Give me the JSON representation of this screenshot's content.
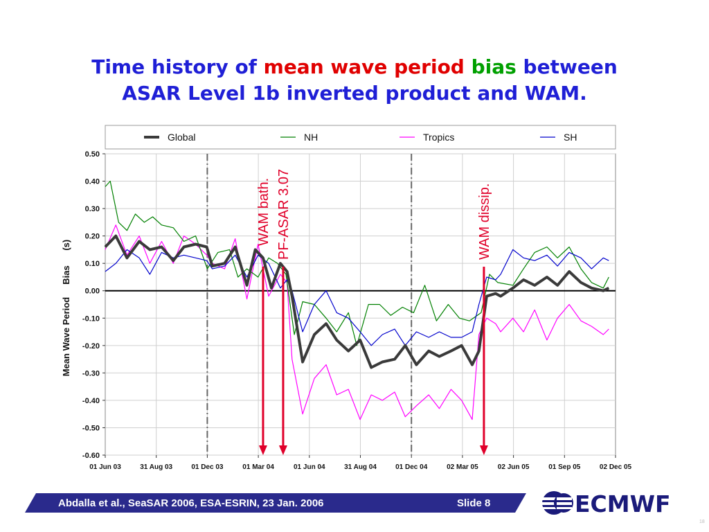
{
  "title": {
    "line1_a": "Time history of ",
    "line1_b": "mean wave period",
    "line1_c": " ",
    "line1_d": "bias",
    "line1_e": " between",
    "line2": "ASAR Level 1b inverted product and WAM."
  },
  "footer": {
    "text": "Abdalla et al.,  SeaSAR 2006,  ESA-ESRIN,  23 Jan. 2006",
    "slide": "Slide 8",
    "logo": "ECMWF",
    "corner_mark": "18"
  },
  "colors": {
    "title_blue": "#1f1fd6",
    "title_red": "#e00000",
    "title_green": "#00a000",
    "global": "#3a3a3a",
    "nh": "#008000",
    "tropics": "#ff00ff",
    "sh": "#0000cc",
    "annotation": "#e0002a",
    "footer_bar": "#2a2a8c",
    "logo": "#1a1a7a"
  },
  "chart_data": {
    "type": "line",
    "ylabel": "Mean Wave Period     Bias      (s)",
    "ylim": [
      -0.6,
      0.5
    ],
    "yticks": [
      "0.50",
      "0.40",
      "0.30",
      "0.20",
      "0.10",
      "0.00",
      "-0.10",
      "-0.20",
      "-0.30",
      "-0.40",
      "-0.50",
      "-0.60"
    ],
    "xticks": [
      "01 Jun 03",
      "31 Aug 03",
      "01 Dec 03",
      "01 Mar 04",
      "01 Jun 04",
      "31 Aug 04",
      "01 Dec 04",
      "02 Mar 05",
      "02 Jun 05",
      "01 Sep 05",
      "02 Dec 05"
    ],
    "xlim": [
      "2003-06-01",
      "2005-12-02"
    ],
    "grid": true,
    "legend": {
      "position": "top",
      "entries": [
        "Global",
        "NH",
        "Tropics",
        "SH"
      ]
    },
    "vlines": [
      "2003-12-01",
      "2004-12-01"
    ],
    "annotations": [
      {
        "text": "WAM bath.",
        "date": "2004-03-10"
      },
      {
        "text": "PF-ASAR 3.07",
        "date": "2004-04-15"
      },
      {
        "text": "WAM dissip.",
        "date": "2005-04-10"
      }
    ],
    "series": [
      {
        "name": "Global",
        "x": [
          "2003-06-01",
          "2003-06-20",
          "2003-07-10",
          "2003-08-01",
          "2003-08-20",
          "2003-09-10",
          "2003-10-01",
          "2003-10-20",
          "2003-11-10",
          "2003-11-30",
          "2003-12-10",
          "2004-01-01",
          "2004-01-20",
          "2004-02-10",
          "2004-02-25",
          "2004-03-10",
          "2004-03-25",
          "2004-04-10",
          "2004-04-22",
          "2004-05-01",
          "2004-05-20",
          "2004-06-10",
          "2004-07-01",
          "2004-07-20",
          "2004-08-10",
          "2004-08-31",
          "2004-09-20",
          "2004-10-10",
          "2004-11-01",
          "2004-11-20",
          "2004-12-10",
          "2005-01-01",
          "2005-01-20",
          "2005-02-10",
          "2005-03-01",
          "2005-03-20",
          "2005-04-01",
          "2005-04-15",
          "2005-05-01",
          "2005-05-10",
          "2005-06-01",
          "2005-06-20",
          "2005-07-10",
          "2005-08-01",
          "2005-08-20",
          "2005-09-10",
          "2005-10-01",
          "2005-10-20",
          "2005-11-10",
          "2005-11-20"
        ],
        "values": [
          0.16,
          0.2,
          0.12,
          0.18,
          0.15,
          0.16,
          0.11,
          0.16,
          0.17,
          0.16,
          0.09,
          0.1,
          0.16,
          0.02,
          0.15,
          0.12,
          0.01,
          0.1,
          0.07,
          -0.02,
          -0.26,
          -0.16,
          -0.12,
          -0.18,
          -0.22,
          -0.18,
          -0.28,
          -0.26,
          -0.25,
          -0.2,
          -0.27,
          -0.22,
          -0.24,
          -0.22,
          -0.2,
          -0.27,
          -0.22,
          -0.02,
          -0.01,
          -0.02,
          0.01,
          0.04,
          0.02,
          0.05,
          0.02,
          0.07,
          0.03,
          0.01,
          0.0,
          0.01
        ]
      },
      {
        "name": "NH",
        "x": [
          "2003-06-01",
          "2003-06-10",
          "2003-06-25",
          "2003-07-10",
          "2003-07-25",
          "2003-08-10",
          "2003-08-25",
          "2003-09-10",
          "2003-10-01",
          "2003-10-20",
          "2003-11-10",
          "2003-12-01",
          "2003-12-20",
          "2004-01-10",
          "2004-01-25",
          "2004-02-10",
          "2004-03-01",
          "2004-03-20",
          "2004-04-05",
          "2004-04-20",
          "2004-05-05",
          "2004-05-20",
          "2004-06-10",
          "2004-07-01",
          "2004-07-20",
          "2004-08-10",
          "2004-08-25",
          "2004-09-15",
          "2004-10-05",
          "2004-10-25",
          "2004-11-15",
          "2004-12-05",
          "2004-12-25",
          "2005-01-15",
          "2005-02-05",
          "2005-02-25",
          "2005-03-15",
          "2005-04-05",
          "2005-04-20",
          "2005-05-05",
          "2005-06-01",
          "2005-06-20",
          "2005-07-10",
          "2005-08-01",
          "2005-08-20",
          "2005-09-10",
          "2005-10-01",
          "2005-10-20",
          "2005-11-10",
          "2005-11-20"
        ],
        "values": [
          0.38,
          0.4,
          0.25,
          0.22,
          0.28,
          0.25,
          0.27,
          0.24,
          0.23,
          0.18,
          0.2,
          0.08,
          0.14,
          0.15,
          0.05,
          0.08,
          0.05,
          0.12,
          0.1,
          0.06,
          -0.16,
          -0.04,
          -0.05,
          -0.1,
          -0.15,
          -0.08,
          -0.2,
          -0.05,
          -0.05,
          -0.09,
          -0.06,
          -0.08,
          0.02,
          -0.11,
          -0.05,
          -0.1,
          -0.11,
          -0.08,
          0.06,
          0.03,
          0.02,
          0.08,
          0.14,
          0.16,
          0.12,
          0.16,
          0.08,
          0.03,
          0.01,
          0.05
        ]
      },
      {
        "name": "Tropics",
        "x": [
          "2003-06-01",
          "2003-06-20",
          "2003-07-10",
          "2003-08-01",
          "2003-08-20",
          "2003-09-10",
          "2003-10-01",
          "2003-10-20",
          "2003-11-10",
          "2003-11-30",
          "2003-12-10",
          "2004-01-01",
          "2004-01-20",
          "2004-02-10",
          "2004-03-01",
          "2004-03-20",
          "2004-04-10",
          "2004-04-22",
          "2004-05-01",
          "2004-05-20",
          "2004-06-10",
          "2004-07-01",
          "2004-07-20",
          "2004-08-10",
          "2004-08-31",
          "2004-09-20",
          "2004-10-10",
          "2004-11-01",
          "2004-11-20",
          "2004-12-10",
          "2005-01-01",
          "2005-01-20",
          "2005-02-10",
          "2005-03-01",
          "2005-03-20",
          "2005-04-01",
          "2005-04-15",
          "2005-05-01",
          "2005-05-10",
          "2005-06-01",
          "2005-06-20",
          "2005-07-10",
          "2005-08-01",
          "2005-08-20",
          "2005-09-10",
          "2005-10-01",
          "2005-10-20",
          "2005-11-10",
          "2005-11-20"
        ],
        "values": [
          0.15,
          0.24,
          0.13,
          0.2,
          0.1,
          0.18,
          0.1,
          0.2,
          0.17,
          0.13,
          0.1,
          0.08,
          0.19,
          -0.03,
          0.17,
          -0.02,
          0.06,
          0.03,
          -0.25,
          -0.45,
          -0.32,
          -0.27,
          -0.38,
          -0.36,
          -0.47,
          -0.38,
          -0.4,
          -0.37,
          -0.46,
          -0.42,
          -0.38,
          -0.43,
          -0.36,
          -0.4,
          -0.47,
          -0.16,
          -0.1,
          -0.12,
          -0.15,
          -0.1,
          -0.15,
          -0.07,
          -0.18,
          -0.1,
          -0.05,
          -0.11,
          -0.13,
          -0.16,
          -0.14
        ]
      },
      {
        "name": "SH",
        "x": [
          "2003-06-01",
          "2003-06-20",
          "2003-07-10",
          "2003-08-01",
          "2003-08-20",
          "2003-09-10",
          "2003-10-01",
          "2003-10-20",
          "2003-11-10",
          "2003-11-30",
          "2003-12-10",
          "2004-01-01",
          "2004-01-20",
          "2004-02-10",
          "2004-03-01",
          "2004-03-20",
          "2004-04-10",
          "2004-04-22",
          "2004-05-01",
          "2004-05-20",
          "2004-06-10",
          "2004-07-01",
          "2004-07-20",
          "2004-08-10",
          "2004-08-31",
          "2004-09-20",
          "2004-10-10",
          "2004-11-01",
          "2004-11-20",
          "2004-12-10",
          "2005-01-01",
          "2005-01-20",
          "2005-02-10",
          "2005-03-01",
          "2005-03-20",
          "2005-04-01",
          "2005-04-15",
          "2005-05-01",
          "2005-05-10",
          "2005-06-01",
          "2005-06-20",
          "2005-07-10",
          "2005-08-01",
          "2005-08-20",
          "2005-09-10",
          "2005-10-01",
          "2005-10-20",
          "2005-11-10",
          "2005-11-20"
        ],
        "values": [
          0.07,
          0.1,
          0.15,
          0.12,
          0.06,
          0.14,
          0.12,
          0.13,
          0.12,
          0.11,
          0.08,
          0.09,
          0.13,
          0.05,
          0.13,
          0.1,
          0.01,
          0.04,
          0.0,
          -0.15,
          -0.05,
          0.0,
          -0.08,
          -0.1,
          -0.15,
          -0.2,
          -0.16,
          -0.14,
          -0.2,
          -0.15,
          -0.17,
          -0.15,
          -0.17,
          -0.17,
          -0.15,
          -0.05,
          0.05,
          0.04,
          0.06,
          0.15,
          0.12,
          0.11,
          0.13,
          0.09,
          0.14,
          0.12,
          0.08,
          0.12,
          0.11
        ]
      }
    ]
  }
}
